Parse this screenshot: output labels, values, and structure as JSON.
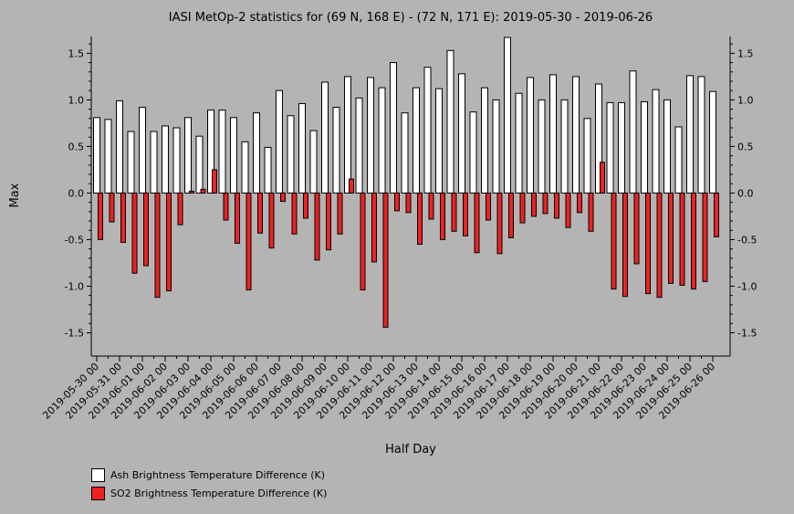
{
  "chart_data": {
    "type": "bar",
    "title": "IASI MetOp-2 statistics for (69 N, 168 E) - (72 N, 171 E): 2019-05-30 - 2019-06-26",
    "xlabel": "Half Day",
    "ylabel": "Max",
    "ylim": [
      -1.75,
      1.68
    ],
    "yticks": [
      -1.5,
      -1.0,
      -0.5,
      0.0,
      0.5,
      1.0,
      1.5
    ],
    "ytick_labels": [
      "-1.5",
      "-1.0",
      "-0.5",
      "0.0",
      "0.5",
      "1.0",
      "1.5"
    ],
    "xtick_labels": [
      "2019-05-30 00",
      "2019-05-31 00",
      "2019-06-01 00",
      "2019-06-02 00",
      "2019-06-03 00",
      "2019-06-04 00",
      "2019-06-05 00",
      "2019-06-06 00",
      "2019-06-07 00",
      "2019-06-08 00",
      "2019-06-09 00",
      "2019-06-10 00",
      "2019-06-11 00",
      "2019-06-12 00",
      "2019-06-13 00",
      "2019-06-14 00",
      "2019-06-15 00",
      "2019-06-16 00",
      "2019-06-17 00",
      "2019-06-18 00",
      "2019-06-19 00",
      "2019-06-20 00",
      "2019-06-21 00",
      "2019-06-22 00",
      "2019-06-23 00",
      "2019-06-24 00",
      "2019-06-25 00",
      "2019-06-26 00"
    ],
    "legend_position": "bottom-left",
    "series": [
      {
        "name": "Ash Brightness Temperature Difference (K)",
        "color": "#ffffff",
        "values": [
          0.81,
          0.79,
          0.99,
          0.66,
          0.92,
          0.66,
          0.72,
          0.7,
          0.81,
          0.61,
          0.89,
          0.89,
          0.81,
          0.55,
          0.86,
          0.49,
          1.1,
          0.83,
          0.96,
          0.67,
          1.19,
          0.92,
          1.25,
          1.02,
          1.24,
          1.13,
          1.4,
          0.86,
          1.13,
          1.35,
          1.12,
          1.53,
          1.28,
          0.87,
          1.13,
          1.0,
          1.67,
          1.07,
          1.24,
          1.0,
          1.27,
          1.0,
          1.25,
          0.8,
          1.17,
          0.97,
          0.97,
          1.31,
          0.98,
          1.11,
          1.0,
          0.71,
          1.26,
          1.25,
          1.09
        ]
      },
      {
        "name": "SO2 Brightness Temperature Difference (K)",
        "color": "#ee2222",
        "values": [
          -0.5,
          -0.31,
          -0.53,
          -0.86,
          -0.78,
          -1.12,
          -1.05,
          -0.34,
          0.02,
          0.04,
          0.25,
          -0.29,
          -0.54,
          -1.04,
          -0.43,
          -0.59,
          -0.09,
          -0.44,
          -0.27,
          -0.72,
          -0.61,
          -0.44,
          0.15,
          -1.04,
          -0.74,
          -1.44,
          -0.19,
          -0.21,
          -0.55,
          -0.28,
          -0.5,
          -0.41,
          -0.46,
          -0.64,
          -0.29,
          -0.65,
          -0.48,
          -0.32,
          -0.25,
          -0.22,
          -0.27,
          -0.37,
          -0.21,
          -0.41,
          0.33,
          -1.03,
          -1.11,
          -0.76,
          -1.08,
          -1.12,
          -0.97,
          -0.99,
          -1.03,
          -0.95,
          -0.47
        ]
      }
    ]
  }
}
